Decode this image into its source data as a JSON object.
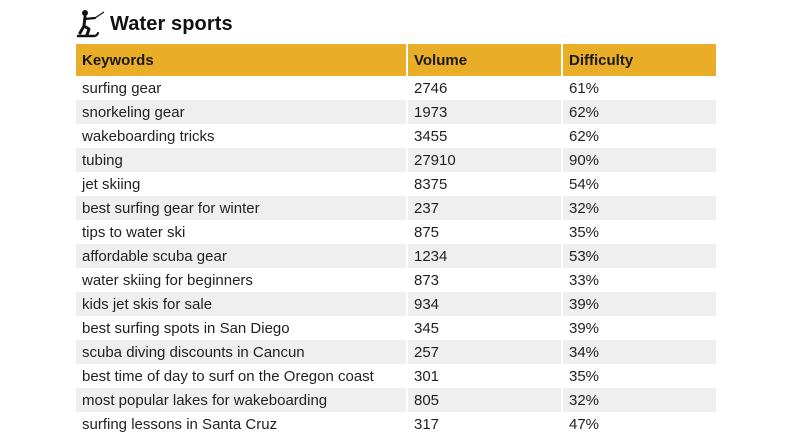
{
  "title": "Water sports",
  "icon": "water-skier-icon",
  "accent_color": "#e9ad28",
  "columns": [
    "Keywords",
    "Volume",
    "Difficulty"
  ],
  "rows": [
    {
      "keyword": "surfing gear",
      "volume": "2746",
      "difficulty": "61%"
    },
    {
      "keyword": "snorkeling gear",
      "volume": "1973",
      "difficulty": "62%"
    },
    {
      "keyword": "wakeboarding tricks",
      "volume": "3455",
      "difficulty": "62%"
    },
    {
      "keyword": "tubing",
      "volume": "27910",
      "difficulty": "90%"
    },
    {
      "keyword": "jet skiing",
      "volume": "8375",
      "difficulty": "54%"
    },
    {
      "keyword": "best surfing gear for winter",
      "volume": "237",
      "difficulty": "32%"
    },
    {
      "keyword": "tips to water ski",
      "volume": "875",
      "difficulty": "35%"
    },
    {
      "keyword": "affordable scuba gear",
      "volume": "1234",
      "difficulty": "53%"
    },
    {
      "keyword": "water skiing for beginners",
      "volume": "873",
      "difficulty": "33%"
    },
    {
      "keyword": "kids jet skis for sale",
      "volume": "934",
      "difficulty": "39%"
    },
    {
      "keyword": "best surfing spots in San Diego",
      "volume": "345",
      "difficulty": "39%"
    },
    {
      "keyword": "scuba diving discounts in Cancun",
      "volume": "257",
      "difficulty": "34%"
    },
    {
      "keyword": "best time of day to surf on the Oregon coast",
      "volume": "301",
      "difficulty": "35%"
    },
    {
      "keyword": "most popular lakes for wakeboarding",
      "volume": "805",
      "difficulty": "32%"
    },
    {
      "keyword": "surfing lessons in Santa Cruz",
      "volume": "317",
      "difficulty": "47%"
    }
  ]
}
